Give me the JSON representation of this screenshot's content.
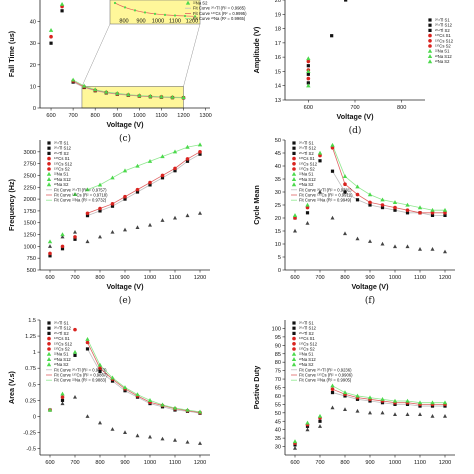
{
  "colors": {
    "s1": "#111111",
    "s12": "#444444",
    "s2": "#777777",
    "cs": "#d9231f",
    "na": "#4cd94c",
    "fit_ti": "#bfbfbf",
    "fit_cs": "#e06060",
    "fit_na": "#8ee88e",
    "highlight": "#fff79a"
  },
  "chart_data": [
    {
      "id": "c",
      "type": "scatter",
      "panel_label": "(c)",
      "xlabel": "Voltage (V)",
      "ylabel": "Fall Time (us)",
      "xlim": [
        550,
        1320
      ],
      "ylim": [
        0,
        50
      ],
      "xticks": [
        600,
        700,
        800,
        900,
        1000,
        1100,
        1200,
        1300
      ],
      "yticks": [
        0,
        10,
        20,
        30,
        40
      ],
      "legend": [
        "²²Na S2",
        "Fit Curve ²⁰⁴Tl (R² = 0.9985)",
        "Fit Curve ¹³⁷Cs (R² = 0.9995)",
        "Fit Curve ²²Na (R² = 0.9965)"
      ],
      "inset_xticks": [
        "800",
        "900",
        "1000",
        "1100",
        "1200"
      ],
      "series": [
        {
          "name": "s1",
          "x": [
            600,
            650,
            700,
            750,
            800,
            850,
            900,
            950,
            1000,
            1050,
            1100,
            1150,
            1200
          ],
          "y": [
            30,
            45,
            12,
            9.5,
            8.0,
            7.0,
            6.4,
            5.9,
            5.5,
            5.2,
            5.0,
            4.8,
            4.7
          ]
        },
        {
          "name": "cs",
          "x": [
            600,
            650,
            700,
            750,
            800,
            850,
            900,
            950,
            1000,
            1050,
            1100,
            1150,
            1200
          ],
          "y": [
            33,
            47,
            12.5,
            9.8,
            8.2,
            7.2,
            6.6,
            6.0,
            5.6,
            5.3,
            5.1,
            4.9,
            4.8
          ]
        },
        {
          "name": "na",
          "x": [
            600,
            650,
            700,
            750,
            800,
            850,
            900,
            950,
            1000,
            1050,
            1100,
            1150,
            1200
          ],
          "y": [
            36,
            48,
            13,
            10.2,
            8.5,
            7.4,
            6.8,
            6.2,
            5.8,
            5.5,
            5.2,
            5.0,
            4.9
          ]
        }
      ]
    },
    {
      "id": "d",
      "type": "scatter",
      "panel_label": "(d)",
      "xlabel": "Voltage (V)",
      "ylabel": "Amplitude (V)",
      "xlim": [
        550,
        850
      ],
      "ylim": [
        13,
        20
      ],
      "xticks": [
        600,
        700,
        800
      ],
      "yticks": [
        13,
        14,
        15,
        16,
        17,
        18,
        19,
        20
      ],
      "legend": [
        "²⁰⁴Tl S1",
        "²⁰⁴Tl S12",
        "²⁰⁴Tl S2",
        "¹³⁷Cs S1",
        "¹³⁷Cs S12",
        "¹³⁷Cs S2",
        "²²Na S1",
        "²²Na S12",
        "²²Na S2"
      ],
      "series": [
        {
          "name": "s1",
          "x": [
            600,
            600,
            600,
            650,
            680
          ],
          "y": [
            14.2,
            14.8,
            15.4,
            17.5,
            20
          ]
        },
        {
          "name": "cs",
          "x": [
            600,
            600,
            600
          ],
          "y": [
            14.5,
            15.1,
            15.7
          ]
        },
        {
          "name": "na",
          "x": [
            600,
            600,
            600
          ],
          "y": [
            14.0,
            15.0,
            15.9
          ]
        }
      ]
    },
    {
      "id": "e",
      "type": "scatter",
      "panel_label": "(e)",
      "xlabel": "Voltage (V)",
      "ylabel": "Frequency (Hz)",
      "xlim": [
        560,
        1240
      ],
      "ylim": [
        500,
        3250
      ],
      "xticks": [
        600,
        700,
        800,
        900,
        1000,
        1100,
        1200
      ],
      "yticks": [
        500,
        750,
        1000,
        1250,
        1500,
        1750,
        2000,
        2250,
        2500,
        2750,
        3000
      ],
      "legend": [
        "²⁰⁴Tl S1",
        "²⁰⁴Tl S12",
        "²⁰⁴Tl S2",
        "¹³⁷Cs S1",
        "¹³⁷Cs S12",
        "¹³⁷Cs S2",
        "²²Na S1",
        "²²Na S12",
        "²²Na S2",
        "Fit Curve ²⁰⁴Tl (R² = 0.9757)",
        "Fit Curve ¹³⁷Cs (R² = 0.9718)",
        "Fit Curve ²²Na (R² = 0.9732)"
      ],
      "series": [
        {
          "name": "s1",
          "x": [
            600,
            650,
            700,
            750,
            800,
            850,
            900,
            950,
            1000,
            1050,
            1100,
            1150,
            1200
          ],
          "y": [
            800,
            950,
            1150,
            1650,
            1750,
            1850,
            2000,
            2150,
            2300,
            2450,
            2600,
            2800,
            2950
          ]
        },
        {
          "name": "s1b",
          "x": [
            600,
            650,
            700,
            750,
            800,
            850,
            900,
            950,
            1000,
            1050,
            1100,
            1150,
            1200
          ],
          "y": [
            1000,
            1200,
            1300,
            1100,
            1200,
            1300,
            1350,
            1400,
            1450,
            1550,
            1600,
            1650,
            1700
          ]
        },
        {
          "name": "cs",
          "x": [
            600,
            650,
            700,
            750,
            800,
            850,
            900,
            950,
            1000,
            1050,
            1100,
            1150,
            1200
          ],
          "y": [
            850,
            1000,
            1200,
            1700,
            1800,
            1900,
            2050,
            2200,
            2350,
            2500,
            2650,
            2850,
            3000
          ]
        },
        {
          "name": "na",
          "x": [
            600,
            650,
            700,
            750,
            800,
            850,
            900,
            950,
            1000,
            1050,
            1100,
            1150,
            1200
          ],
          "y": [
            1100,
            1250,
            2100,
            2200,
            2300,
            2450,
            2600,
            2700,
            2800,
            2900,
            3000,
            3100,
            3150
          ]
        }
      ]
    },
    {
      "id": "f",
      "type": "scatter",
      "panel_label": "(f)",
      "xlabel": "Voltage (V)",
      "ylabel": "Cycle Mean",
      "xlim": [
        560,
        1240
      ],
      "ylim": [
        0,
        50
      ],
      "xticks": [
        600,
        700,
        800,
        900,
        1000,
        1100,
        1200
      ],
      "yticks": [
        0,
        5,
        10,
        15,
        20,
        25,
        30,
        35,
        40,
        45,
        50
      ],
      "legend": [
        "²⁰⁴Tl S1",
        "²⁰⁴Tl S12",
        "²⁰⁴Tl S2",
        "¹³⁷Cs S1",
        "¹³⁷Cs S12",
        "¹³⁷Cs S2",
        "²²Na S1",
        "²²Na S12",
        "²²Na S2",
        "Fit Curve ²⁰⁴Tl (R² = 0.9381)",
        "Fit Curve ¹³⁷Cs (R² = 0.9912)",
        "Fit Curve ²²Na (R² = 0.9949)"
      ],
      "series": [
        {
          "name": "s1",
          "x": [
            600,
            650,
            700,
            750,
            800,
            850,
            900,
            950,
            1000,
            1050,
            1100,
            1150,
            1200
          ],
          "y": [
            20,
            22,
            42,
            38,
            30,
            27,
            25,
            24,
            23,
            22,
            22,
            21,
            21
          ]
        },
        {
          "name": "s1b",
          "x": [
            600,
            650,
            700,
            750,
            800,
            850,
            900,
            950,
            1000,
            1050,
            1100,
            1150,
            1200
          ],
          "y": [
            15,
            18,
            30,
            20,
            14,
            12,
            11,
            10,
            9,
            9,
            8,
            8,
            7
          ]
        },
        {
          "name": "cs",
          "x": [
            600,
            650,
            700,
            750,
            800,
            850,
            900,
            950,
            1000,
            1050,
            1100,
            1150,
            1200
          ],
          "y": [
            20,
            24,
            44,
            47,
            33,
            29,
            26,
            25,
            24,
            23,
            22,
            22,
            22
          ]
        },
        {
          "name": "na",
          "x": [
            600,
            650,
            700,
            750,
            800,
            850,
            900,
            950,
            1000,
            1050,
            1100,
            1150,
            1200
          ],
          "y": [
            21,
            25,
            45,
            48,
            36,
            32,
            29,
            27,
            26,
            25,
            24,
            23,
            23
          ]
        }
      ]
    },
    {
      "id": "g",
      "type": "scatter",
      "panel_label": "",
      "xlabel": "",
      "ylabel": "Area (V.s)",
      "xlim": [
        560,
        1240
      ],
      "ylim": [
        -0.6,
        1.5
      ],
      "xticks": [
        600,
        700,
        800,
        900,
        1000,
        1100,
        1200
      ],
      "yticks": [
        -0.5,
        -0.25,
        0.0,
        0.25,
        0.5,
        0.75,
        1.0,
        1.25,
        1.5
      ],
      "legend": [
        "²⁰⁴Tl S1",
        "²⁰⁴Tl S12",
        "²⁰⁴Tl S2",
        "¹³⁷Cs S1",
        "¹³⁷Cs S12",
        "¹³⁷Cs S2",
        "²²Na S1",
        "²²Na S12",
        "²²Na S2",
        "Fit Curve ²⁰⁴Tl (R² = 0.9873)",
        "Fit Curve ¹³⁷Cs (R² = 0.9867)",
        "Fit Curve ²²Na (R² = 0.9883)"
      ],
      "series": [
        {
          "name": "s1",
          "x": [
            600,
            650,
            700,
            750,
            800,
            850,
            900,
            950,
            1000,
            1050,
            1100,
            1150,
            1200
          ],
          "y": [
            0.1,
            0.25,
            0.95,
            1.05,
            0.7,
            0.55,
            0.4,
            0.3,
            0.2,
            0.15,
            0.1,
            0.08,
            0.05
          ]
        },
        {
          "name": "s1b",
          "x": [
            600,
            650,
            700,
            750,
            800,
            850,
            900,
            950,
            1000,
            1050,
            1100,
            1150,
            1200
          ],
          "y": [
            0.1,
            0.2,
            0.3,
            0.0,
            -0.1,
            -0.2,
            -0.25,
            -0.3,
            -0.32,
            -0.35,
            -0.37,
            -0.4,
            -0.42
          ]
        },
        {
          "name": "cs",
          "x": [
            600,
            650,
            700,
            750,
            800,
            850,
            900,
            950,
            1000,
            1050,
            1100,
            1150,
            1200
          ],
          "y": [
            0.1,
            0.3,
            1.35,
            1.15,
            0.75,
            0.58,
            0.43,
            0.32,
            0.22,
            0.17,
            0.12,
            0.09,
            0.06
          ]
        },
        {
          "name": "na",
          "x": [
            600,
            650,
            700,
            750,
            800,
            850,
            900,
            950,
            1000,
            1050,
            1100,
            1150,
            1200
          ],
          "y": [
            0.1,
            0.35,
            1.0,
            1.2,
            0.8,
            0.6,
            0.45,
            0.34,
            0.25,
            0.18,
            0.13,
            0.1,
            0.07
          ]
        }
      ]
    },
    {
      "id": "h",
      "type": "scatter",
      "panel_label": "",
      "xlabel": "",
      "ylabel": "Postive Duty",
      "xlim": [
        560,
        1240
      ],
      "ylim": [
        25,
        105
      ],
      "xticks": [
        600,
        700,
        800,
        900,
        1000,
        1100,
        1200
      ],
      "yticks": [
        30,
        35,
        40,
        45,
        50,
        55,
        60,
        65,
        70,
        75,
        80,
        85,
        90,
        95,
        100
      ],
      "legend": [
        "²⁰⁴Tl S1",
        "²⁰⁴Tl S12",
        "²⁰⁴Tl S2",
        "¹³⁷Cs S1",
        "¹³⁷Cs S12",
        "¹³⁷Cs S2",
        "²²Na S1",
        "²²Na S12",
        "²²Na S2",
        "Fit Curve ²⁰⁴Tl (R² = 0.9236)",
        "Fit Curve ¹³⁷Cs (R² = 0.9906)",
        "Fit Curve ²²Na (R² = 0.9905)"
      ],
      "series": [
        {
          "name": "s1",
          "x": [
            600,
            650,
            700,
            750,
            800,
            850,
            900,
            950,
            1000,
            1050,
            1100,
            1150,
            1200
          ],
          "y": [
            31,
            42,
            45,
            62,
            60,
            58,
            57,
            56,
            55,
            55,
            54,
            54,
            54
          ]
        },
        {
          "name": "s1b",
          "x": [
            600,
            650,
            700,
            750,
            800,
            850,
            900,
            950,
            1000,
            1050,
            1100,
            1150,
            1200
          ],
          "y": [
            29,
            40,
            42,
            53,
            52,
            51,
            50,
            50,
            49,
            49,
            49,
            48,
            48
          ]
        },
        {
          "name": "cs",
          "x": [
            600,
            650,
            700,
            750,
            800,
            850,
            900,
            950,
            1000,
            1050,
            1100,
            1150,
            1200
          ],
          "y": [
            32,
            43,
            47,
            64,
            61,
            59,
            58,
            57,
            56,
            56,
            55,
            55,
            55
          ]
        },
        {
          "name": "na",
          "x": [
            600,
            650,
            700,
            750,
            800,
            850,
            900,
            950,
            1000,
            1050,
            1100,
            1150,
            1200
          ],
          "y": [
            33,
            44,
            48,
            66,
            62,
            60,
            59,
            58,
            57,
            57,
            56,
            56,
            56
          ]
        }
      ]
    }
  ]
}
